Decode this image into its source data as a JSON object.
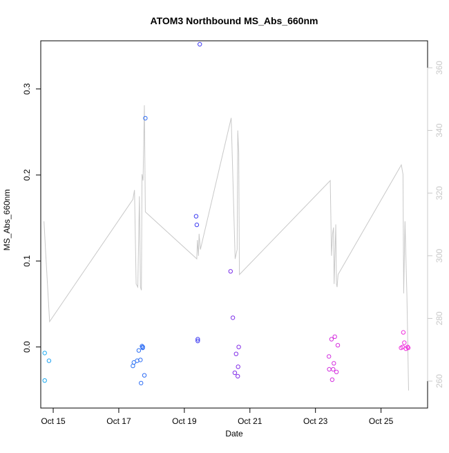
{
  "chart_data": {
    "type": "scatter",
    "title": "ATOM3 Northbound MS_Abs_660nm",
    "xlabel": "Date",
    "ylabel": "MS_Abs_660nm",
    "x_unit": "day of October",
    "xlim": [
      14.62,
      26.42
    ],
    "ylim": [
      -0.071,
      0.356
    ],
    "y2lim": [
      251.4,
      368.6
    ],
    "grid": false,
    "legend": "none",
    "x_ticks": [
      {
        "value": 15,
        "label": "Oct 15"
      },
      {
        "value": 17,
        "label": "Oct 17"
      },
      {
        "value": 19,
        "label": "Oct 19"
      },
      {
        "value": 21,
        "label": "Oct 21"
      },
      {
        "value": 23,
        "label": "Oct 23"
      },
      {
        "value": 25,
        "label": "Oct 25"
      }
    ],
    "y_ticks": [
      {
        "value": 0.0,
        "label": "0.0"
      },
      {
        "value": 0.1,
        "label": "0.1"
      },
      {
        "value": 0.2,
        "label": "0.2"
      },
      {
        "value": 0.3,
        "label": "0.3"
      }
    ],
    "y2_ticks": [
      {
        "value": 260,
        "label": "260"
      },
      {
        "value": 280,
        "label": "280"
      },
      {
        "value": 300,
        "label": "300"
      },
      {
        "value": 320,
        "label": "320"
      },
      {
        "value": 340,
        "label": "340"
      },
      {
        "value": 360,
        "label": "360"
      }
    ],
    "colors": {
      "axis": "#000000",
      "secondary_axis": "#c8c8c8",
      "line": "#c8c8c8"
    },
    "series": [
      {
        "type": "scatter",
        "marker": "open-circle",
        "color_scale": "time",
        "points": [
          {
            "x": 14.74,
            "y": -0.007,
            "color": "#19a9f0"
          },
          {
            "x": 14.74,
            "y": -0.039,
            "color": "#19a9f0"
          },
          {
            "x": 14.87,
            "y": -0.016,
            "color": "#1ea2f2"
          },
          {
            "x": 17.43,
            "y": -0.022,
            "color": "#2b73f4"
          },
          {
            "x": 17.46,
            "y": -0.018,
            "color": "#2b73f4"
          },
          {
            "x": 17.56,
            "y": -0.016,
            "color": "#2c70f4"
          },
          {
            "x": 17.61,
            "y": -0.004,
            "color": "#2c70f4"
          },
          {
            "x": 17.66,
            "y": -0.015,
            "color": "#2d6ef4"
          },
          {
            "x": 17.68,
            "y": -0.042,
            "color": "#2d6ef4"
          },
          {
            "x": 17.71,
            "y": 0.001,
            "color": "#2d6df4"
          },
          {
            "x": 17.73,
            "y": 0.0,
            "color": "#2d6df4"
          },
          {
            "x": 17.73,
            "y": -0.001,
            "color": "#2d6df4"
          },
          {
            "x": 17.78,
            "y": -0.033,
            "color": "#2e6cf4"
          },
          {
            "x": 17.81,
            "y": 0.266,
            "color": "#2e6bf4"
          },
          {
            "x": 19.36,
            "y": 0.152,
            "color": "#3e3ef2"
          },
          {
            "x": 19.38,
            "y": 0.142,
            "color": "#3f3df2"
          },
          {
            "x": 19.41,
            "y": 0.007,
            "color": "#3f3cf2"
          },
          {
            "x": 19.41,
            "y": 0.009,
            "color": "#3f3cf2"
          },
          {
            "x": 19.47,
            "y": 0.352,
            "color": "#403bf2"
          },
          {
            "x": 20.41,
            "y": 0.088,
            "color": "#7a2ee8"
          },
          {
            "x": 20.48,
            "y": 0.034,
            "color": "#7d2ee8"
          },
          {
            "x": 20.54,
            "y": -0.03,
            "color": "#802ee8"
          },
          {
            "x": 20.58,
            "y": -0.008,
            "color": "#822ee8"
          },
          {
            "x": 20.63,
            "y": -0.034,
            "color": "#842ee8"
          },
          {
            "x": 20.64,
            "y": -0.023,
            "color": "#842ee8"
          },
          {
            "x": 20.66,
            "y": 0.0,
            "color": "#852ee8"
          },
          {
            "x": 23.41,
            "y": -0.011,
            "color": "#d12fdf"
          },
          {
            "x": 23.42,
            "y": -0.026,
            "color": "#d12fdf"
          },
          {
            "x": 23.49,
            "y": 0.009,
            "color": "#d32fdf"
          },
          {
            "x": 23.51,
            "y": -0.038,
            "color": "#d42fdf"
          },
          {
            "x": 23.54,
            "y": -0.026,
            "color": "#d42fdf"
          },
          {
            "x": 23.56,
            "y": -0.019,
            "color": "#d52fdf"
          },
          {
            "x": 23.59,
            "y": 0.012,
            "color": "#d52fdf"
          },
          {
            "x": 23.64,
            "y": -0.029,
            "color": "#d62fdf"
          },
          {
            "x": 23.68,
            "y": 0.002,
            "color": "#d72fdf"
          },
          {
            "x": 25.61,
            "y": -0.001,
            "color": "#ee30dc"
          },
          {
            "x": 25.66,
            "y": 0.0,
            "color": "#ee30dc"
          },
          {
            "x": 25.68,
            "y": 0.017,
            "color": "#ef30dc"
          },
          {
            "x": 25.71,
            "y": 0.005,
            "color": "#ef30dc"
          },
          {
            "x": 25.76,
            "y": -0.002,
            "color": "#ef30dc"
          },
          {
            "x": 25.81,
            "y": 0.0,
            "color": "#f030dc"
          },
          {
            "x": 25.83,
            "y": -0.001,
            "color": "#f030dc"
          }
        ]
      },
      {
        "type": "line",
        "axis": "secondary",
        "color": "#c8c8c8",
        "points": [
          {
            "x": 14.72,
            "y": 311
          },
          {
            "x": 14.77,
            "y": 301
          },
          {
            "x": 14.89,
            "y": 279
          },
          {
            "x": 17.43,
            "y": 318
          },
          {
            "x": 17.48,
            "y": 321
          },
          {
            "x": 17.53,
            "y": 291
          },
          {
            "x": 17.58,
            "y": 290
          },
          {
            "x": 17.63,
            "y": 319
          },
          {
            "x": 17.66,
            "y": 290
          },
          {
            "x": 17.69,
            "y": 289
          },
          {
            "x": 17.71,
            "y": 326
          },
          {
            "x": 17.74,
            "y": 324
          },
          {
            "x": 17.78,
            "y": 348
          },
          {
            "x": 17.81,
            "y": 314
          },
          {
            "x": 19.38,
            "y": 299
          },
          {
            "x": 19.4,
            "y": 305
          },
          {
            "x": 19.43,
            "y": 300
          },
          {
            "x": 19.45,
            "y": 307
          },
          {
            "x": 19.49,
            "y": 302
          },
          {
            "x": 20.43,
            "y": 344
          },
          {
            "x": 20.55,
            "y": 299
          },
          {
            "x": 20.61,
            "y": 302
          },
          {
            "x": 20.63,
            "y": 340
          },
          {
            "x": 20.66,
            "y": 333
          },
          {
            "x": 20.68,
            "y": 294
          },
          {
            "x": 23.45,
            "y": 324
          },
          {
            "x": 23.49,
            "y": 300
          },
          {
            "x": 23.52,
            "y": 307
          },
          {
            "x": 23.55,
            "y": 309
          },
          {
            "x": 23.57,
            "y": 291
          },
          {
            "x": 23.62,
            "y": 310
          },
          {
            "x": 23.64,
            "y": 291
          },
          {
            "x": 23.66,
            "y": 290
          },
          {
            "x": 23.69,
            "y": 294
          },
          {
            "x": 25.62,
            "y": 329
          },
          {
            "x": 25.67,
            "y": 326
          },
          {
            "x": 25.69,
            "y": 288
          },
          {
            "x": 25.73,
            "y": 311
          },
          {
            "x": 25.79,
            "y": 287
          },
          {
            "x": 25.84,
            "y": 257
          }
        ]
      }
    ]
  }
}
